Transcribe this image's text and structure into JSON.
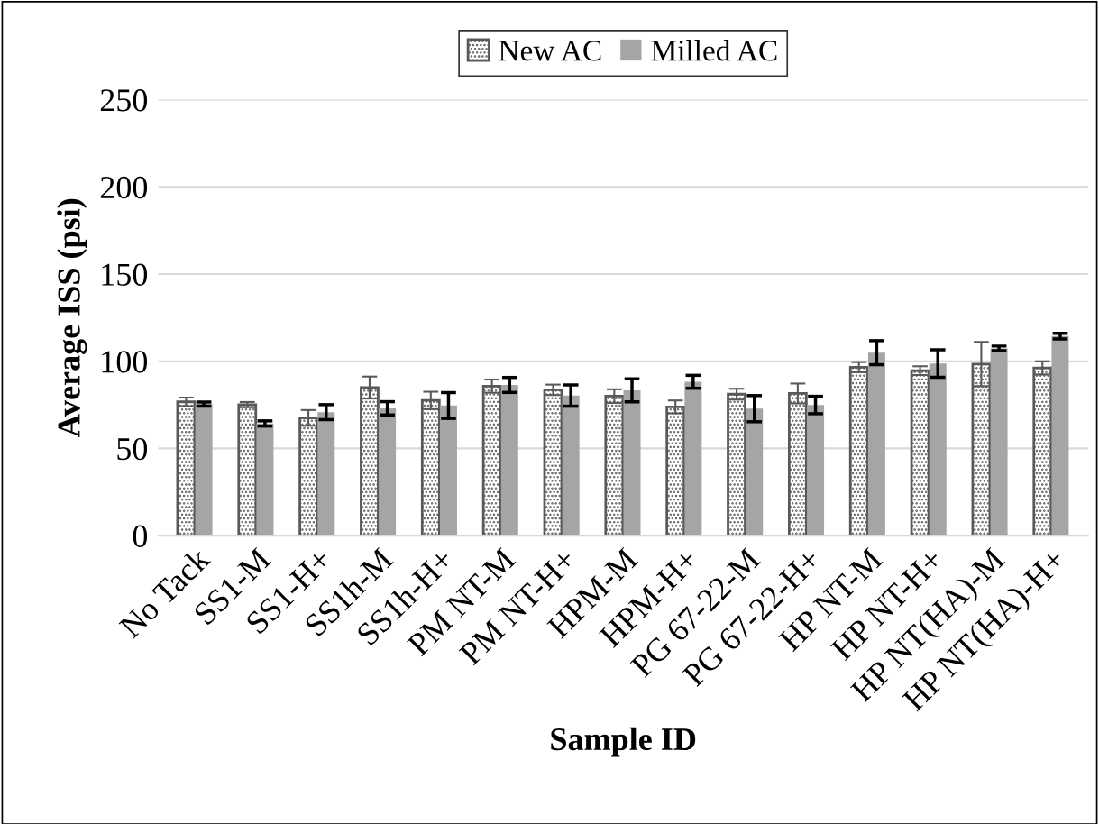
{
  "chart_data": {
    "type": "bar",
    "xlabel": "Sample ID",
    "ylabel": "Average ISS (psi)",
    "categories": [
      "No Tack",
      "SS1-M",
      "SS1-H+",
      "SS1h-M",
      "SS1h-H+",
      "PM NT-M",
      "PM NT-H+",
      "HPM-M",
      "HPM-H+",
      "PG 67-22-M",
      "PG 67-22-H+",
      "HP NT-M",
      "HP NT-H+",
      "HP NT(HA)-M",
      "HP NT(HA)-H+"
    ],
    "series": [
      {
        "name": "New AC",
        "color": "#595959",
        "values": [
          76.7,
          75.1,
          67.5,
          84.9,
          77.5,
          85.7,
          83.6,
          80.0,
          73.8,
          81.1,
          81.5,
          96.6,
          94.6,
          98.4,
          96.2
        ],
        "errors": [
          2.5,
          1.5,
          4.5,
          6.3,
          5.0,
          3.8,
          3.0,
          3.9,
          3.7,
          3.1,
          5.7,
          2.9,
          2.5,
          12.7,
          3.8
        ]
      },
      {
        "name": "Milled AC",
        "color": "#a5a5a5",
        "values": [
          75.4,
          64.3,
          70.8,
          73.0,
          74.6,
          86.4,
          80.3,
          83.3,
          88.2,
          72.8,
          74.9,
          104.9,
          98.7,
          107.4,
          114.4
        ],
        "errors": [
          1.2,
          1.5,
          4.3,
          3.8,
          7.4,
          4.3,
          6.1,
          6.6,
          3.7,
          7.5,
          5.0,
          6.9,
          7.9,
          1.3,
          1.6
        ]
      }
    ],
    "ylim": [
      0,
      250
    ],
    "yticks": [
      0,
      50,
      100,
      150,
      200,
      250
    ],
    "grid": "y",
    "legend": "top"
  }
}
